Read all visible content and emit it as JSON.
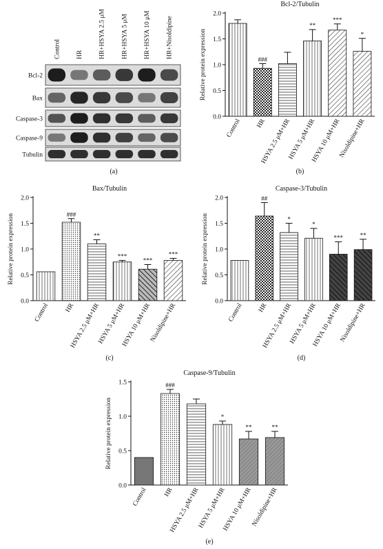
{
  "blot": {
    "columns": [
      "Control",
      "HR",
      "HR+HSYA 2.5 μM",
      "HR+HSYA 5 μM",
      "HR+HSYA 10 μM",
      "HR+Nisoldipine"
    ],
    "rows": [
      "Bcl-2",
      "Bax",
      "Caspase-3",
      "Caspase-9",
      "Tubulin"
    ],
    "label": "(a)"
  },
  "chart_data": [
    {
      "id": "b",
      "label": "(b)",
      "type": "bar",
      "title": "Bcl-2/Tubulin",
      "ylabel": "Relative protein expression",
      "ylim": [
        0,
        2.0
      ],
      "yticks": [
        "0.0",
        "0.5",
        "1.0",
        "1.5",
        "2.0"
      ],
      "categories": [
        "Control",
        "HR",
        "HSYA 2.5 μM+HR",
        "HSYA 5 μM+HR",
        "HSYA 10 μM+HR",
        "Nisoldipine+HR"
      ],
      "values": [
        1.8,
        0.93,
        1.02,
        1.46,
        1.67,
        1.26
      ],
      "errors": [
        0.07,
        0.09,
        0.22,
        0.22,
        0.12,
        0.25
      ],
      "annotations": [
        "",
        "###",
        "",
        "**",
        "***",
        "*"
      ]
    },
    {
      "id": "c",
      "label": "(c)",
      "type": "bar",
      "title": "Bax/Tubulin",
      "ylabel": "Relative protein expression",
      "ylim": [
        0,
        2.0
      ],
      "yticks": [
        "0.0",
        "0.5",
        "1.0",
        "1.5",
        "2.0"
      ],
      "categories": [
        "Control",
        "HR",
        "HSYA 2.5 μM+HR",
        "HSYA 5 μM+HR",
        "HSYA 10 μM+HR",
        "Nisoldipine+HR"
      ],
      "values": [
        0.56,
        1.52,
        1.1,
        0.75,
        0.61,
        0.78
      ],
      "errors": [
        0.0,
        0.07,
        0.08,
        0.03,
        0.09,
        0.04
      ],
      "annotations": [
        "",
        "###",
        "**",
        "***",
        "***",
        "***"
      ]
    },
    {
      "id": "d",
      "label": "(d)",
      "type": "bar",
      "title": "Caspase-3/Tubulin",
      "ylabel": "Relative protein expression",
      "ylim": [
        0,
        2.0
      ],
      "yticks": [
        "0.0",
        "0.5",
        "1.0",
        "1.5",
        "2.0"
      ],
      "categories": [
        "Control",
        "HR",
        "HSYA 2.5 μM+HR",
        "HSYA 5 μM+HR",
        "HSYA 10 μM+HR",
        "Nisoldipine+HR"
      ],
      "values": [
        0.78,
        1.64,
        1.32,
        1.21,
        0.9,
        0.99
      ],
      "errors": [
        0.0,
        0.26,
        0.18,
        0.19,
        0.24,
        0.2
      ],
      "annotations": [
        "",
        "##",
        "*",
        "*",
        "***",
        "**"
      ]
    },
    {
      "id": "e",
      "label": "(e)",
      "type": "bar",
      "title": "Caspase-9/Tubulin",
      "ylabel": "Relative protein expression",
      "ylim": [
        0,
        1.5
      ],
      "yticks": [
        "0.0",
        "0.5",
        "1.0",
        "1.5"
      ],
      "categories": [
        "Control",
        "HR",
        "HSYA 2.5 μM+HR",
        "HSYA 5 μM+HR",
        "HSYA 10 μM+HR",
        "Nisoldipine+HR"
      ],
      "values": [
        0.4,
        1.33,
        1.18,
        0.88,
        0.67,
        0.69
      ],
      "errors": [
        0.0,
        0.06,
        0.07,
        0.05,
        0.11,
        0.09
      ],
      "annotations": [
        "",
        "###",
        "",
        "*",
        "**",
        "**"
      ]
    }
  ]
}
